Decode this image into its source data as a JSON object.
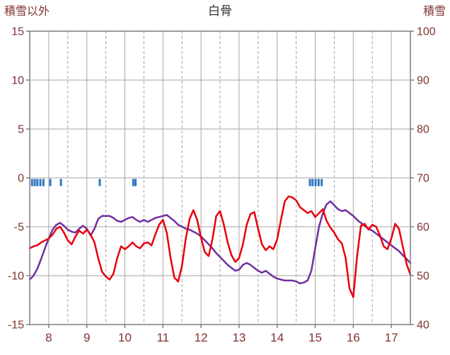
{
  "header": {
    "left_label": "積雪以外",
    "title": "白骨",
    "right_label": "積雪"
  },
  "chart_data": {
    "type": "line",
    "title": "白骨",
    "left_axis": {
      "title": "積雪以外",
      "min": -15,
      "max": 15,
      "ticks": [
        15,
        10,
        5,
        0,
        -5,
        -10,
        -15
      ]
    },
    "right_axis": {
      "title": "積雪",
      "min": 40,
      "max": 100,
      "ticks": [
        100,
        90,
        80,
        70,
        60,
        50,
        40
      ]
    },
    "x_axis": {
      "min": 7.5,
      "max": 17.5,
      "ticks": [
        8,
        9,
        10,
        11,
        12,
        13,
        14,
        15,
        16,
        17
      ]
    },
    "grid": {
      "horizontal": "solid",
      "vertical_day": "solid",
      "vertical_half_day": "dashed"
    },
    "colors": {
      "red_line": "#e8000d",
      "purple_line": "#7030a0",
      "event_marks": "#2e78c2",
      "grid": "#a6a6a6",
      "border": "#7f7f7f",
      "axis_text": "#803333",
      "title_text": "#333333",
      "background": "#ffffff"
    },
    "series": [
      {
        "name": "purple-line",
        "axis": "right",
        "color": "#7030a0",
        "x_start": 7.5,
        "x_step": 0.1,
        "values": [
          49.2,
          50.0,
          51.4,
          53.4,
          55.6,
          57.6,
          59.4,
          60.4,
          60.8,
          60.2,
          59.4,
          59.0,
          58.8,
          59.6,
          60.2,
          59.6,
          58.2,
          59.6,
          61.6,
          62.2,
          62.2,
          62.2,
          61.8,
          61.2,
          61.0,
          61.4,
          61.8,
          62.0,
          61.4,
          61.0,
          61.4,
          61.0,
          61.4,
          61.8,
          62.0,
          62.2,
          62.4,
          61.8,
          61.2,
          60.4,
          60.0,
          59.6,
          59.4,
          59.0,
          58.6,
          58.0,
          57.2,
          56.4,
          55.6,
          54.6,
          53.8,
          53.0,
          52.2,
          51.6,
          51.0,
          51.2,
          52.2,
          52.6,
          52.2,
          51.6,
          51.0,
          50.6,
          51.0,
          50.4,
          49.8,
          49.4,
          49.2,
          49.0,
          49.0,
          49.0,
          48.8,
          48.4,
          48.6,
          49.0,
          51.0,
          55.6,
          60.0,
          62.8,
          64.6,
          65.2,
          64.4,
          63.6,
          63.2,
          63.4,
          62.8,
          62.2,
          61.4,
          60.8,
          60.2,
          59.6,
          59.2,
          58.6,
          58.0,
          57.4,
          56.8,
          56.2,
          55.6,
          55.0,
          54.2,
          53.4,
          52.6
        ]
      },
      {
        "name": "red-line",
        "axis": "left",
        "color": "#e8000d",
        "x_start": 7.5,
        "x_step": 0.1,
        "values": [
          -7.2,
          -7.0,
          -6.9,
          -6.6,
          -6.4,
          -6.2,
          -5.8,
          -5.2,
          -5.0,
          -5.6,
          -6.4,
          -6.8,
          -6.0,
          -5.4,
          -5.7,
          -5.3,
          -5.8,
          -6.6,
          -8.2,
          -9.6,
          -10.1,
          -10.4,
          -9.8,
          -8.2,
          -7.0,
          -7.3,
          -7.0,
          -6.6,
          -7.0,
          -7.2,
          -6.7,
          -6.6,
          -6.9,
          -5.8,
          -4.8,
          -4.3,
          -5.6,
          -8.2,
          -10.2,
          -10.6,
          -9.0,
          -6.2,
          -4.2,
          -3.3,
          -4.3,
          -6.1,
          -7.6,
          -8.0,
          -6.3,
          -3.9,
          -3.4,
          -4.8,
          -6.6,
          -7.9,
          -8.6,
          -8.2,
          -6.8,
          -4.8,
          -3.7,
          -3.5,
          -5.2,
          -6.8,
          -7.4,
          -7.0,
          -7.3,
          -6.3,
          -4.3,
          -2.4,
          -1.9,
          -2.0,
          -2.3,
          -3.0,
          -3.3,
          -3.6,
          -3.4,
          -4.0,
          -3.6,
          -3.2,
          -4.4,
          -5.1,
          -5.6,
          -6.3,
          -6.7,
          -8.2,
          -11.3,
          -12.2,
          -8.0,
          -4.9,
          -4.7,
          -5.3,
          -4.8,
          -5.0,
          -5.9,
          -7.0,
          -7.3,
          -6.2,
          -4.7,
          -5.2,
          -7.0,
          -8.8,
          -9.9
        ]
      }
    ],
    "event_marks": {
      "y_top": 0,
      "y_bottom": -0.85,
      "x": [
        7.56,
        7.63,
        7.7,
        7.78,
        7.86,
        8.04,
        8.32,
        9.34,
        10.22,
        10.28,
        14.86,
        14.93,
        15.01,
        15.09,
        15.17
      ]
    }
  }
}
